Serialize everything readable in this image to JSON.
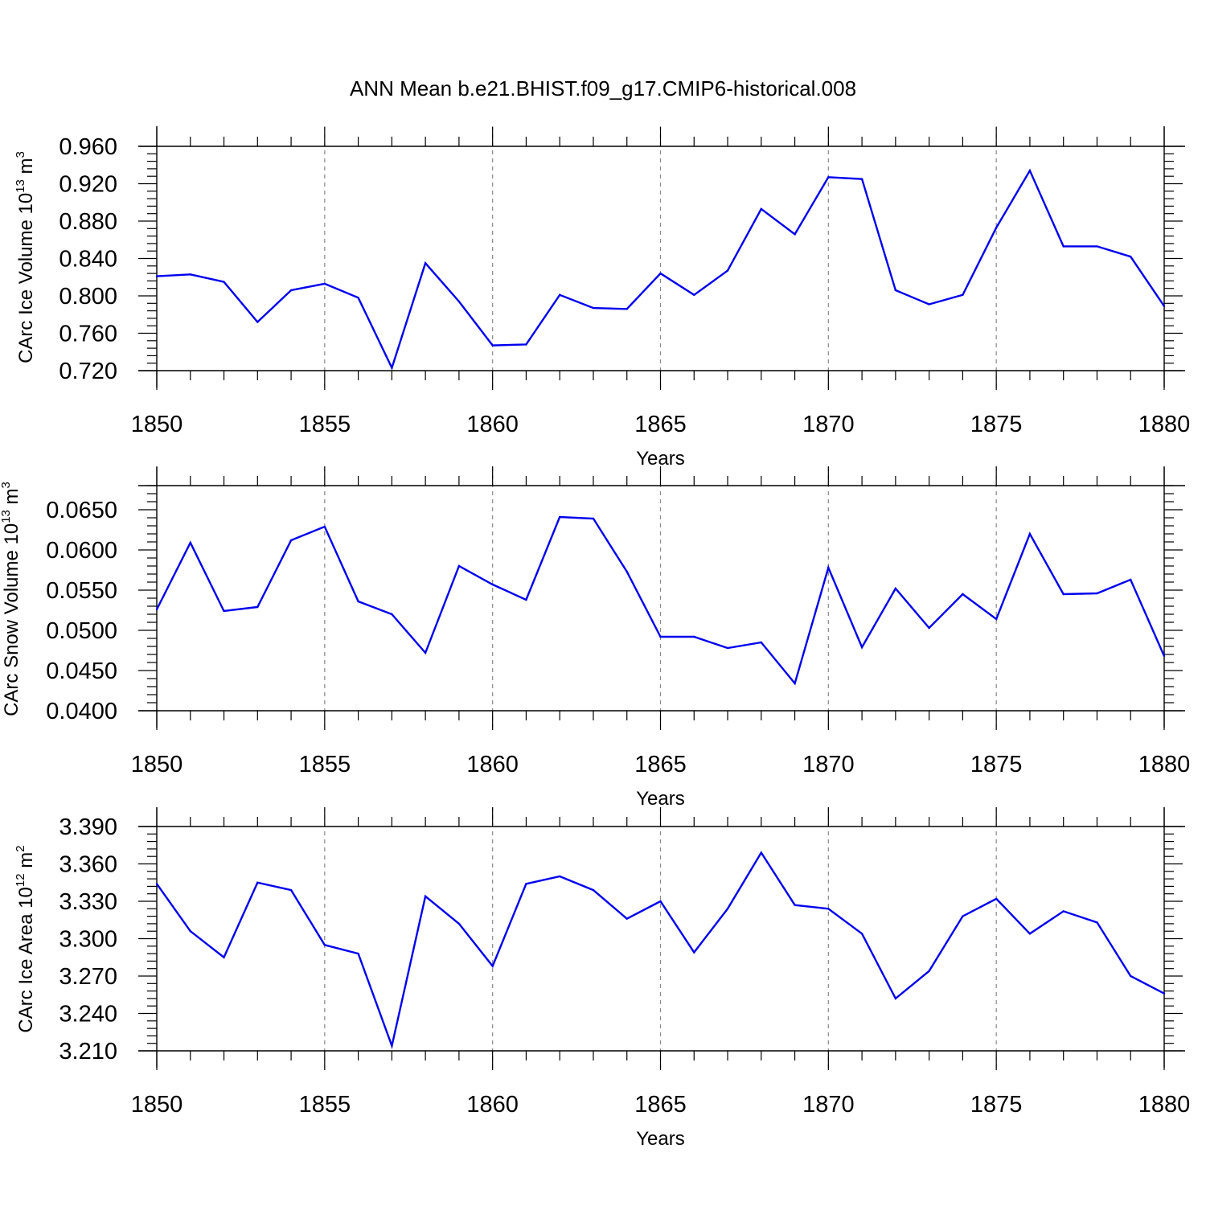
{
  "figure": {
    "title": "ANN Mean b.e21.BHIST.f09_g17.CMIP6-historical.008",
    "series_color": "#0000ee"
  },
  "chart_data": [
    {
      "type": "line",
      "ylabel_main": "CArc Ice Volume 10",
      "ylabel_exp": "13",
      "ylabel_unit": " m",
      "ylabel_unit_exp": "3",
      "xlabel": "Years",
      "xlim": [
        1850,
        1880
      ],
      "ylim": [
        0.72,
        0.96
      ],
      "yticks": [
        0.72,
        0.76,
        0.8,
        0.84,
        0.88,
        0.92,
        0.96
      ],
      "ytick_labels": [
        "0.720",
        "0.760",
        "0.800",
        "0.840",
        "0.880",
        "0.920",
        "0.960"
      ],
      "xticks": [
        1850,
        1855,
        1860,
        1865,
        1870,
        1875,
        1880
      ],
      "xtick_labels": [
        "1850",
        "1855",
        "1860",
        "1865",
        "1870",
        "1875",
        "1880"
      ],
      "x": [
        1850,
        1851,
        1852,
        1853,
        1854,
        1855,
        1856,
        1857,
        1858,
        1859,
        1860,
        1861,
        1862,
        1863,
        1864,
        1865,
        1866,
        1867,
        1868,
        1869,
        1870,
        1871,
        1872,
        1873,
        1874,
        1875,
        1876,
        1877,
        1878,
        1879,
        1880
      ],
      "values": [
        0.821,
        0.823,
        0.815,
        0.772,
        0.806,
        0.813,
        0.798,
        0.723,
        0.835,
        0.794,
        0.747,
        0.748,
        0.801,
        0.787,
        0.786,
        0.824,
        0.801,
        0.827,
        0.893,
        0.866,
        0.927,
        0.925,
        0.806,
        0.791,
        0.801,
        0.873,
        0.934,
        0.853,
        0.853,
        0.842,
        0.789
      ]
    },
    {
      "type": "line",
      "ylabel_main": "CArc Snow Volume 10",
      "ylabel_exp": "13",
      "ylabel_unit": " m",
      "ylabel_unit_exp": "3",
      "xlabel": "Years",
      "xlim": [
        1850,
        1880
      ],
      "ylim": [
        0.04,
        0.068
      ],
      "yticks": [
        0.04,
        0.045,
        0.05,
        0.055,
        0.06,
        0.065
      ],
      "ytick_labels": [
        "0.0400",
        "0.0450",
        "0.0500",
        "0.0550",
        "0.0600",
        "0.0650"
      ],
      "xticks": [
        1850,
        1855,
        1860,
        1865,
        1870,
        1875,
        1880
      ],
      "xtick_labels": [
        "1850",
        "1855",
        "1860",
        "1865",
        "1870",
        "1875",
        "1880"
      ],
      "x": [
        1850,
        1851,
        1852,
        1853,
        1854,
        1855,
        1856,
        1857,
        1858,
        1859,
        1860,
        1861,
        1862,
        1863,
        1864,
        1865,
        1866,
        1867,
        1868,
        1869,
        1870,
        1871,
        1872,
        1873,
        1874,
        1875,
        1876,
        1877,
        1878,
        1879,
        1880
      ],
      "values": [
        0.0526,
        0.0609,
        0.0524,
        0.0529,
        0.0612,
        0.0629,
        0.0536,
        0.052,
        0.0472,
        0.058,
        0.0557,
        0.0538,
        0.0641,
        0.0639,
        0.0573,
        0.0492,
        0.0492,
        0.0478,
        0.0485,
        0.0434,
        0.0578,
        0.0479,
        0.0552,
        0.0503,
        0.0545,
        0.0514,
        0.062,
        0.0545,
        0.0546,
        0.0563,
        0.0468
      ]
    },
    {
      "type": "line",
      "ylabel_main": "CArc Ice Area 10",
      "ylabel_exp": "12",
      "ylabel_unit": " m",
      "ylabel_unit_exp": "2",
      "xlabel": "Years",
      "xlim": [
        1850,
        1880
      ],
      "ylim": [
        3.21,
        3.39
      ],
      "yticks": [
        3.21,
        3.24,
        3.27,
        3.3,
        3.33,
        3.36,
        3.39
      ],
      "ytick_labels": [
        "3.210",
        "3.240",
        "3.270",
        "3.300",
        "3.330",
        "3.360",
        "3.390"
      ],
      "xticks": [
        1850,
        1855,
        1860,
        1865,
        1870,
        1875,
        1880
      ],
      "xtick_labels": [
        "1850",
        "1855",
        "1860",
        "1865",
        "1870",
        "1875",
        "1880"
      ],
      "x": [
        1850,
        1851,
        1852,
        1853,
        1854,
        1855,
        1856,
        1857,
        1858,
        1859,
        1860,
        1861,
        1862,
        1863,
        1864,
        1865,
        1866,
        1867,
        1868,
        1869,
        1870,
        1871,
        1872,
        1873,
        1874,
        1875,
        1876,
        1877,
        1878,
        1879,
        1880
      ],
      "values": [
        3.344,
        3.306,
        3.285,
        3.345,
        3.339,
        3.295,
        3.288,
        3.214,
        3.334,
        3.312,
        3.278,
        3.344,
        3.35,
        3.339,
        3.316,
        3.33,
        3.289,
        3.324,
        3.369,
        3.327,
        3.324,
        3.304,
        3.252,
        3.274,
        3.318,
        3.332,
        3.304,
        3.322,
        3.313,
        3.27,
        3.256
      ]
    }
  ]
}
